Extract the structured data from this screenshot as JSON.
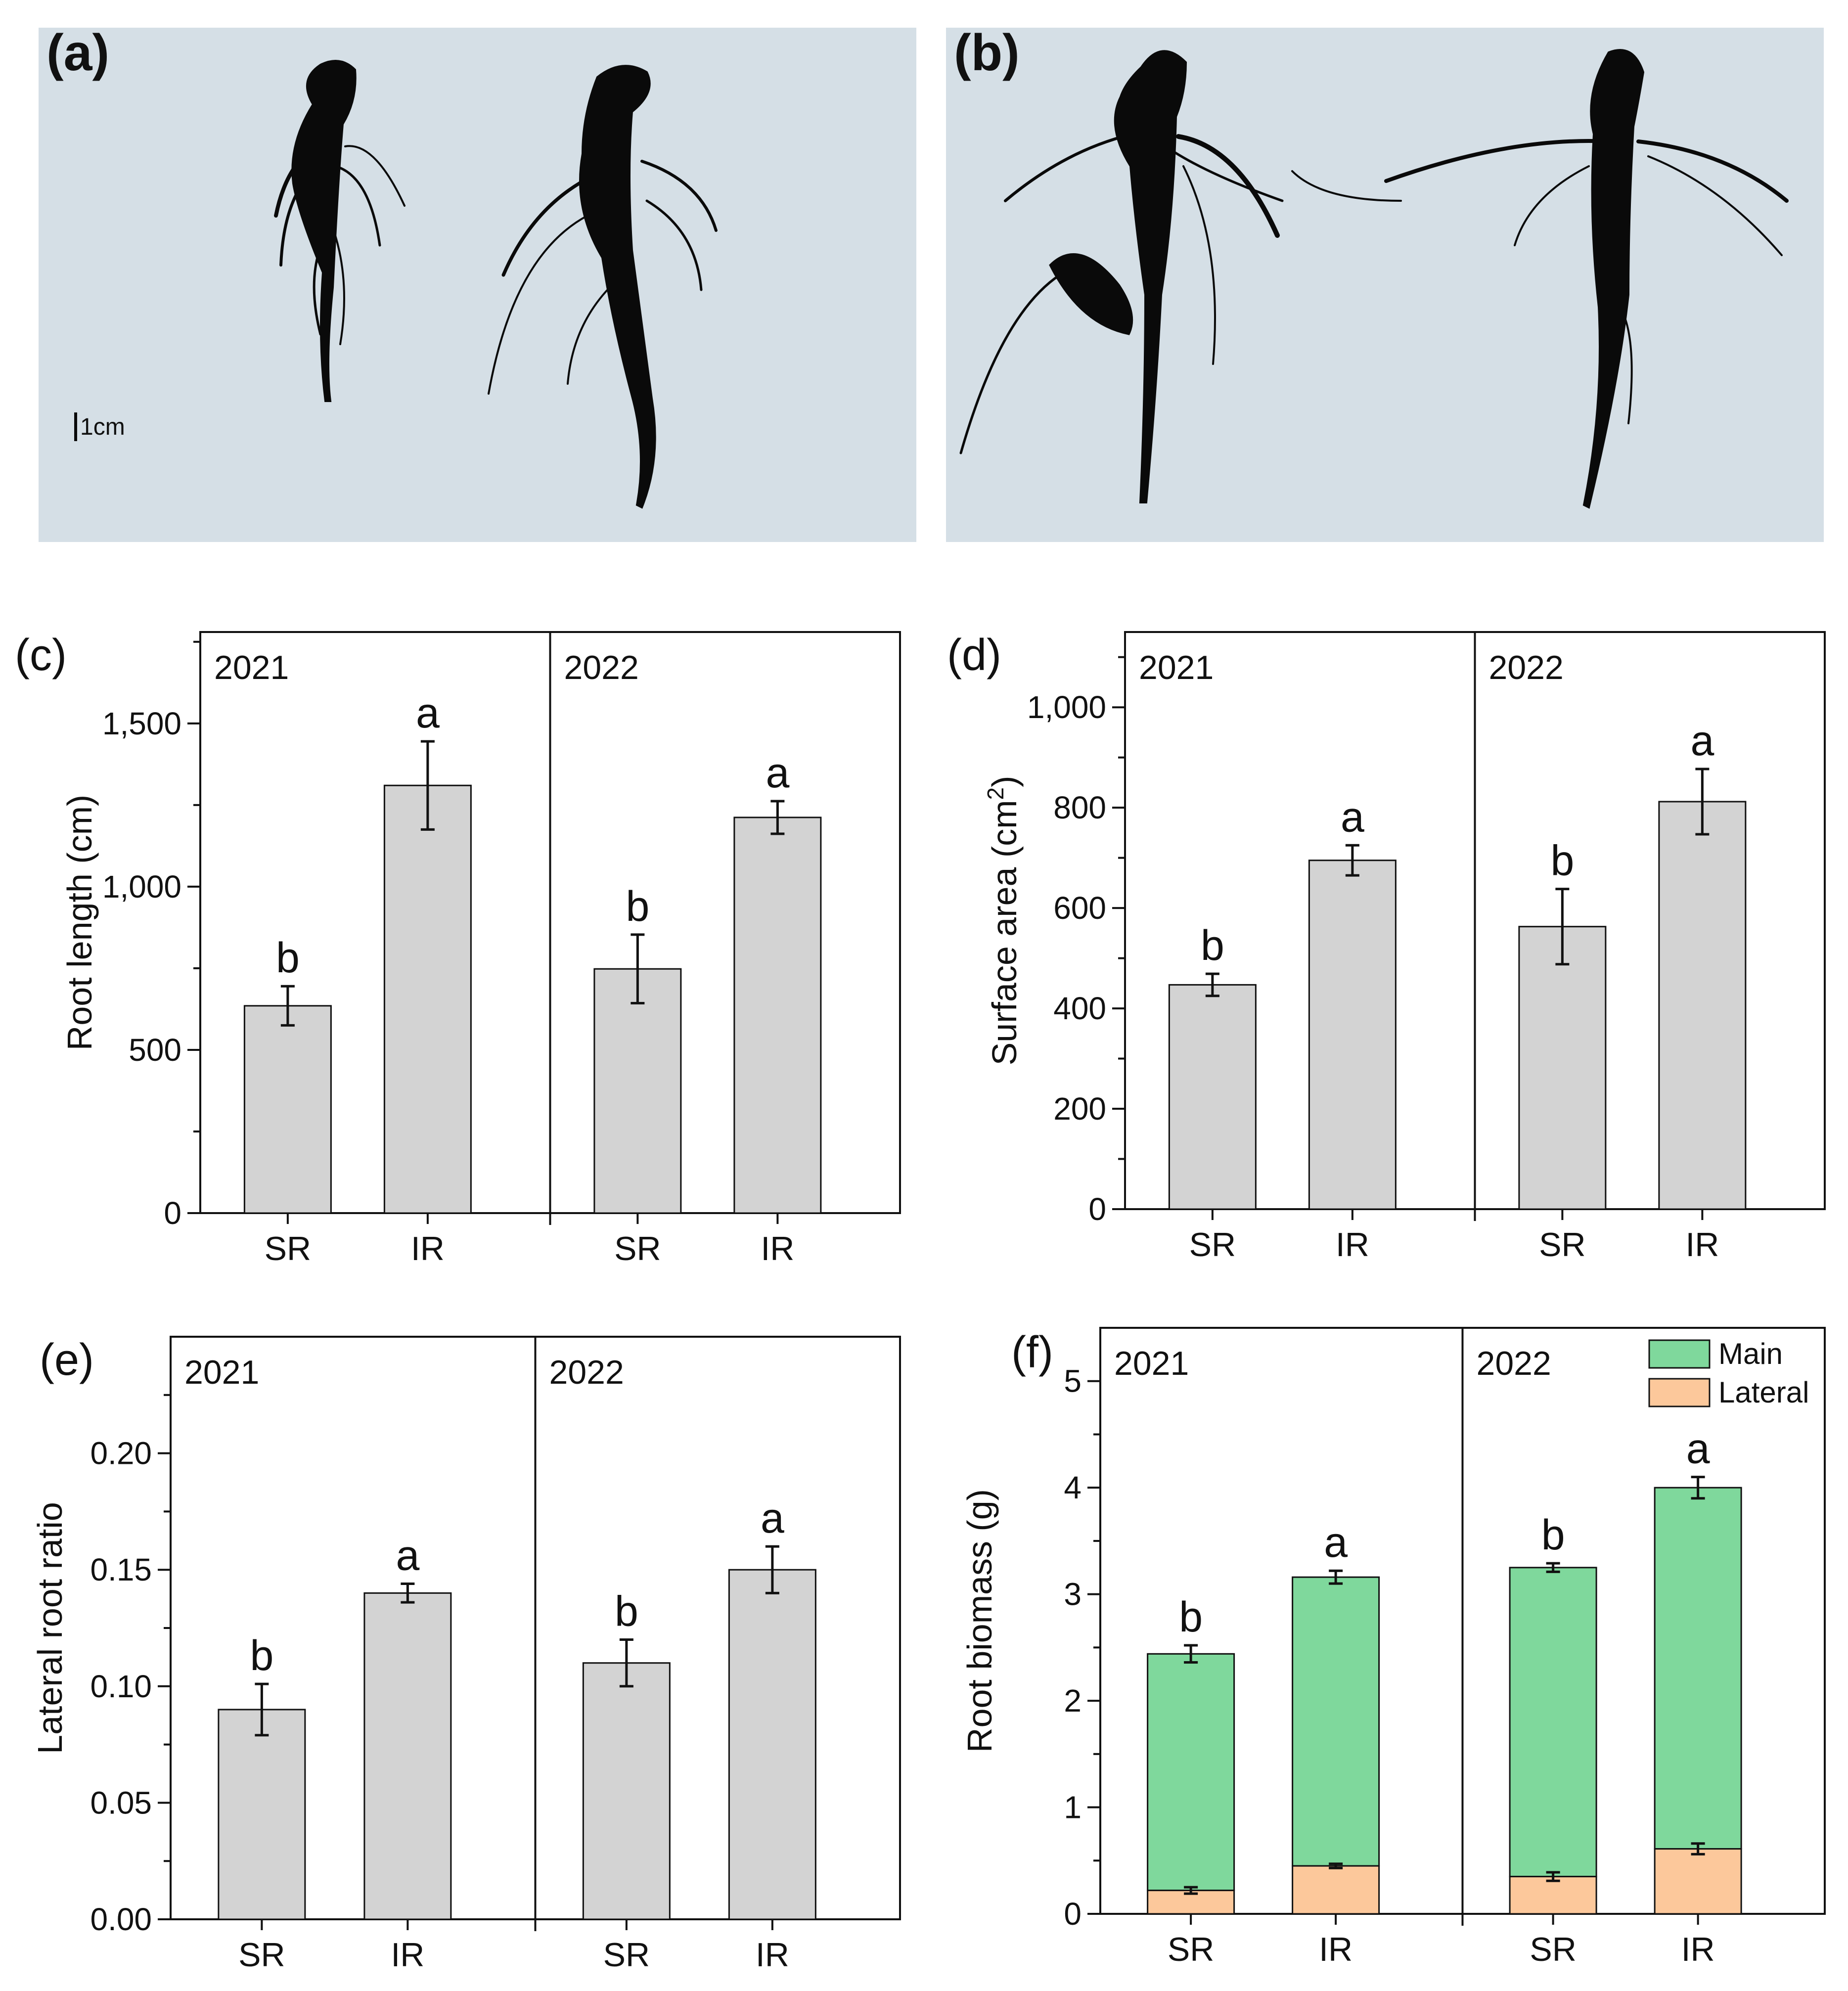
{
  "colors": {
    "bar": "#d3d3d3",
    "main": "#7fd89c",
    "lateral": "#fcc89b",
    "photo_bg": "#d5dfe6",
    "root": "#0a0a0a"
  },
  "photos": [
    {
      "label": "(a)",
      "scale_label": "1cm"
    },
    {
      "label": "(b)"
    }
  ],
  "chart_data": [
    {
      "panel": "(c)",
      "type": "bar",
      "ylabel": "Root length (cm)",
      "ylim": [
        0,
        1780
      ],
      "yticks": [
        0,
        500,
        1000,
        1500
      ],
      "ytick_labels": [
        "0",
        "500",
        "1,000",
        "1,500"
      ],
      "groups": [
        {
          "year": "2021",
          "categories": [
            "SR",
            "IR"
          ],
          "values": [
            635,
            1310
          ],
          "errors": [
            60,
            135
          ],
          "letters": [
            "b",
            "a"
          ]
        },
        {
          "year": "2022",
          "categories": [
            "SR",
            "IR"
          ],
          "values": [
            748,
            1212
          ],
          "errors": [
            105,
            50
          ],
          "letters": [
            "b",
            "a"
          ]
        }
      ]
    },
    {
      "panel": "(d)",
      "type": "bar",
      "ylabel": "Surface area (cm²)",
      "ylim": [
        0,
        1150
      ],
      "yticks": [
        0,
        200,
        400,
        600,
        800,
        1000
      ],
      "ytick_labels": [
        "0",
        "200",
        "400",
        "600",
        "800",
        "1,000"
      ],
      "groups": [
        {
          "year": "2021",
          "categories": [
            "SR",
            "IR"
          ],
          "values": [
            447,
            695
          ],
          "errors": [
            22,
            30
          ],
          "letters": [
            "b",
            "a"
          ]
        },
        {
          "year": "2022",
          "categories": [
            "SR",
            "IR"
          ],
          "values": [
            563,
            812
          ],
          "errors": [
            75,
            65
          ],
          "letters": [
            "b",
            "a"
          ]
        }
      ]
    },
    {
      "panel": "(e)",
      "type": "bar",
      "ylabel": "Lateral root ratio",
      "ylim": [
        0,
        0.25
      ],
      "yticks": [
        0,
        0.05,
        0.1,
        0.15,
        0.2
      ],
      "ytick_labels": [
        "0.00",
        "0.05",
        "0.10",
        "0.15",
        "0.20"
      ],
      "groups": [
        {
          "year": "2021",
          "categories": [
            "SR",
            "IR"
          ],
          "values": [
            0.09,
            0.14
          ],
          "errors": [
            0.011,
            0.004
          ],
          "letters": [
            "b",
            "a"
          ]
        },
        {
          "year": "2022",
          "categories": [
            "SR",
            "IR"
          ],
          "values": [
            0.11,
            0.15
          ],
          "errors": [
            0.01,
            0.01
          ],
          "letters": [
            "b",
            "a"
          ]
        }
      ]
    },
    {
      "panel": "(f)",
      "type": "stacked-bar",
      "ylabel": "Root biomass (g)",
      "ylim": [
        0,
        5.5
      ],
      "yticks": [
        0,
        1,
        2,
        3,
        4,
        5
      ],
      "ytick_labels": [
        "0",
        "1",
        "2",
        "3",
        "4",
        "5"
      ],
      "legend": {
        "position": "top-right",
        "entries": [
          {
            "name": "Main",
            "color_key": "main"
          },
          {
            "name": "Lateral",
            "color_key": "lateral"
          }
        ]
      },
      "groups": [
        {
          "year": "2021",
          "categories": [
            "SR",
            "IR"
          ],
          "lateral": [
            0.22,
            0.45
          ],
          "lateral_errors": [
            0.03,
            0.02
          ],
          "total": [
            2.44,
            3.16
          ],
          "total_errors": [
            0.08,
            0.06
          ],
          "letters": [
            "b",
            "a"
          ]
        },
        {
          "year": "2022",
          "categories": [
            "SR",
            "IR"
          ],
          "lateral": [
            0.35,
            0.61
          ],
          "lateral_errors": [
            0.04,
            0.05
          ],
          "total": [
            3.25,
            4.0
          ],
          "total_errors": [
            0.04,
            0.1
          ],
          "letters": [
            "b",
            "a"
          ]
        }
      ]
    }
  ]
}
